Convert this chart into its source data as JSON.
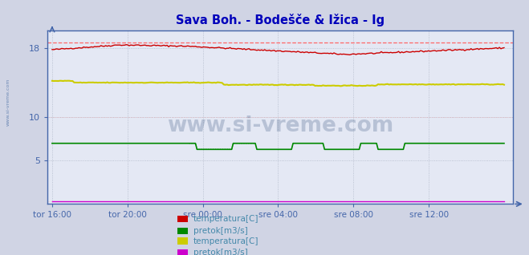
{
  "title": "Sava Boh. - Bodešče & Ižica - Ig",
  "title_color": "#0000bb",
  "bg_color": "#d0d4e4",
  "plot_bg_color": "#e4e8f4",
  "grid_color": "#b0b8c8",
  "axis_color": "#4466aa",
  "tick_label_color": "#4466aa",
  "watermark": "www.si-vreme.com",
  "xlabels": [
    "tor 16:00",
    "tor 20:00",
    "sre 00:00",
    "sre 04:00",
    "sre 08:00",
    "sre 12:00"
  ],
  "ylim": [
    0,
    20
  ],
  "ytick_vals": [
    5,
    10,
    18
  ],
  "ytick_labels": [
    "5",
    "10",
    "18"
  ],
  "n_points": 288,
  "sava_temp_color": "#cc0000",
  "sava_temp_max": 18.65,
  "sava_temp_max_color": "#ff6666",
  "sava_pretok_color": "#008800",
  "sava_pretok_main": 7.0,
  "sava_pretok_dip": 6.3,
  "izica_temp_color": "#cccc00",
  "izica_temp_main": 14.0,
  "izica_pretok_color": "#cc00cc",
  "izica_pretok_main": 0.3,
  "legend_items": [
    {
      "label": "temperatura[C]",
      "color": "#cc0000"
    },
    {
      "label": "pretok[m3/s]",
      "color": "#008800"
    },
    {
      "label": "temperatura[C]",
      "color": "#cccc00"
    },
    {
      "label": "pretok[m3/s]",
      "color": "#cc00cc"
    }
  ]
}
